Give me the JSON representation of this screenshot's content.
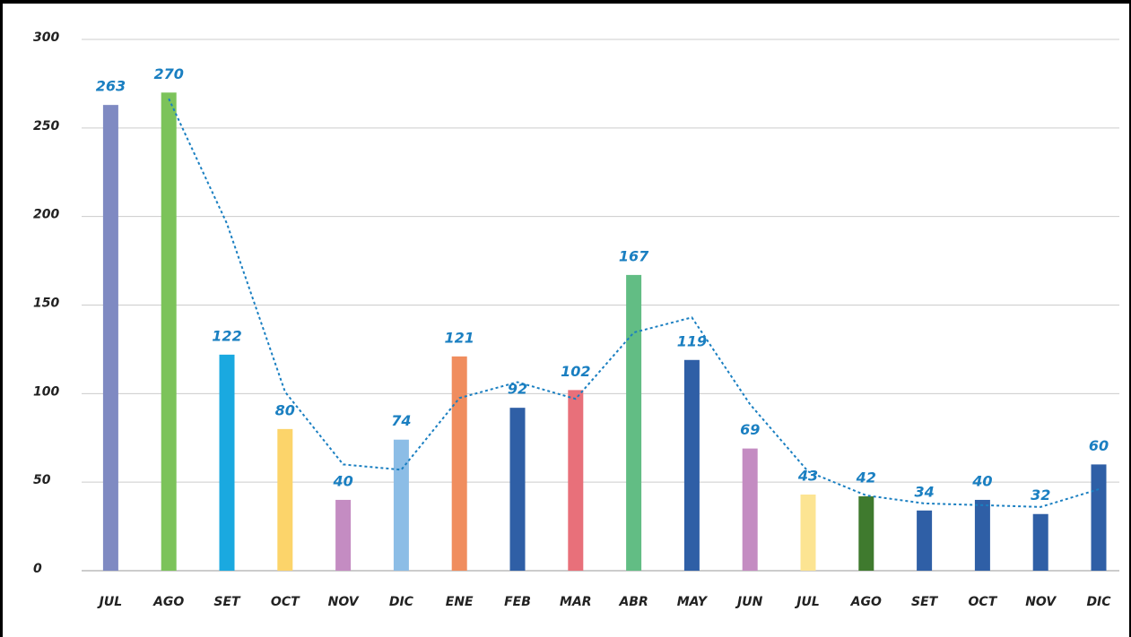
{
  "chart_data": {
    "type": "bar",
    "categories": [
      "JUL",
      "AGO",
      "SET",
      "OCT",
      "NOV",
      "DIC",
      "ENE",
      "FEB",
      "MAR",
      "ABR",
      "MAY",
      "JUN",
      "JUL",
      "AGO",
      "SET",
      "OCT",
      "NOV",
      "DIC"
    ],
    "values": [
      263,
      270,
      122,
      80,
      40,
      74,
      121,
      92,
      102,
      167,
      119,
      69,
      43,
      42,
      34,
      40,
      32,
      60
    ],
    "colors": [
      "#7f8ac2",
      "#7cc35a",
      "#1aa9e0",
      "#fcd46a",
      "#c48cc2",
      "#8cbde6",
      "#f08d5e",
      "#2f5fa6",
      "#e8707a",
      "#62bd84",
      "#2f5fa6",
      "#c48cc2",
      "#fce492",
      "#3f7a2e",
      "#2f5fa6",
      "#2f5fa6",
      "#2f5fa6",
      "#2f5fa6"
    ],
    "trend": {
      "values": [
        null,
        266.5,
        196,
        101,
        60,
        57,
        97.5,
        106.5,
        97,
        134.5,
        143,
        94,
        56,
        42.5,
        38,
        37,
        36,
        46
      ],
      "color": "#1a7fc1"
    },
    "label_color": "#1a7fc1",
    "ylim": [
      0,
      300
    ],
    "yticks": [
      0,
      50,
      100,
      150,
      200,
      250,
      300
    ],
    "grid": true
  }
}
